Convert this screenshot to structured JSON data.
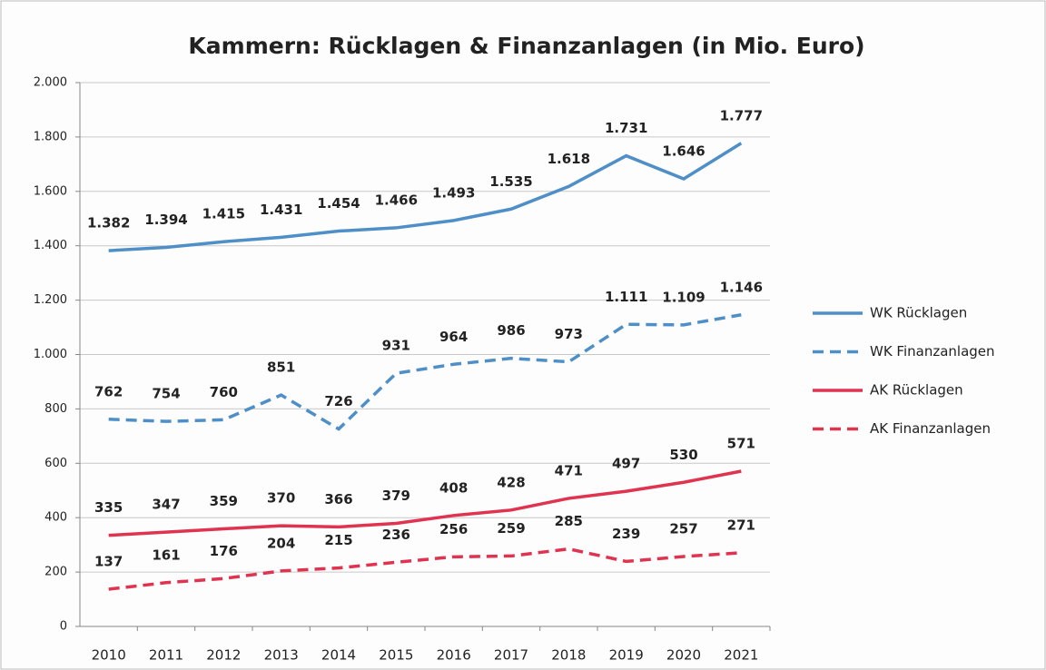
{
  "chart_data": {
    "type": "line",
    "title": "Kammern: Rücklagen & Finanzanlagen (in Mio. Euro)",
    "categories": [
      "2010",
      "2011",
      "2012",
      "2013",
      "2014",
      "2015",
      "2016",
      "2017",
      "2018",
      "2019",
      "2020",
      "2021"
    ],
    "series": [
      {
        "name": "WK Rücklagen",
        "color": "#4f8fc8",
        "line_style": "solid",
        "values": [
          1382,
          1394,
          1415,
          1431,
          1454,
          1466,
          1493,
          1535,
          1618,
          1731,
          1646,
          1777
        ],
        "value_labels": [
          "1.382",
          "1.394",
          "1.415",
          "1.431",
          "1.454",
          "1.466",
          "1.493",
          "1.535",
          "1.618",
          "1.731",
          "1.646",
          "1.777"
        ]
      },
      {
        "name": "WK Finanzanlagen",
        "color": "#4f8fc8",
        "line_style": "dashed",
        "values": [
          762,
          754,
          760,
          851,
          726,
          931,
          964,
          986,
          973,
          1111,
          1109,
          1146
        ],
        "value_labels": [
          "762",
          "754",
          "760",
          "851",
          "726",
          "931",
          "964",
          "986",
          "973",
          "1.111",
          "1.109",
          "1.146"
        ]
      },
      {
        "name": "AK Rücklagen",
        "color": "#e0334f",
        "line_style": "solid",
        "values": [
          335,
          347,
          359,
          370,
          366,
          379,
          408,
          428,
          471,
          497,
          530,
          571
        ]
      },
      {
        "name": "AK Finanzanlagen",
        "color": "#e0334f",
        "line_style": "dashed",
        "values": [
          137,
          161,
          176,
          204,
          215,
          236,
          256,
          259,
          285,
          239,
          257,
          271
        ]
      }
    ],
    "ylim": [
      0,
      2000
    ],
    "yticks": [
      0,
      200,
      400,
      600,
      800,
      {
        "value": 1000,
        "label": "1.000"
      },
      {
        "value": 1200,
        "label": "1.200"
      },
      {
        "value": 1400,
        "label": "1.400"
      },
      {
        "value": 1600,
        "label": "1.600"
      },
      {
        "value": 1800,
        "label": "1.800"
      },
      {
        "value": 2000,
        "label": "2.000"
      }
    ],
    "grid": true,
    "legend": "right"
  }
}
